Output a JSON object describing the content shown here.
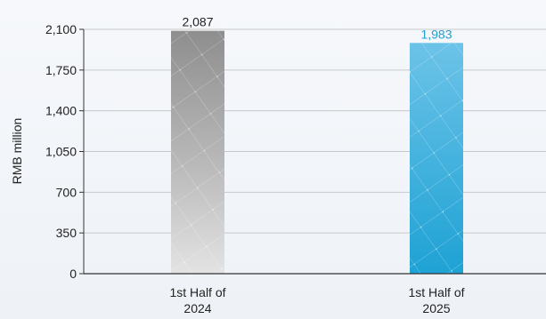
{
  "chart_data": {
    "type": "bar",
    "ylabel": "RMB million",
    "categories": [
      "1st Half of\n2024",
      "1st Half of\n2025"
    ],
    "values": [
      2087,
      1983
    ],
    "value_labels": [
      "2,087",
      "1,983"
    ],
    "ylim": [
      0,
      2100
    ],
    "yticks": [
      0,
      350,
      700,
      1050,
      1400,
      1750,
      2100
    ],
    "ytick_labels": [
      "0",
      "350",
      "700",
      "1,050",
      "1,400",
      "1,750",
      "2,100"
    ],
    "grid": true,
    "colors": {
      "bar_2024": "#9a9a9a",
      "bar_2025": "#3fa9d6",
      "value_2024": "#222222",
      "value_2025": "#1f9fd1",
      "grid": "#c8c8c8",
      "axis": "#333333"
    }
  }
}
